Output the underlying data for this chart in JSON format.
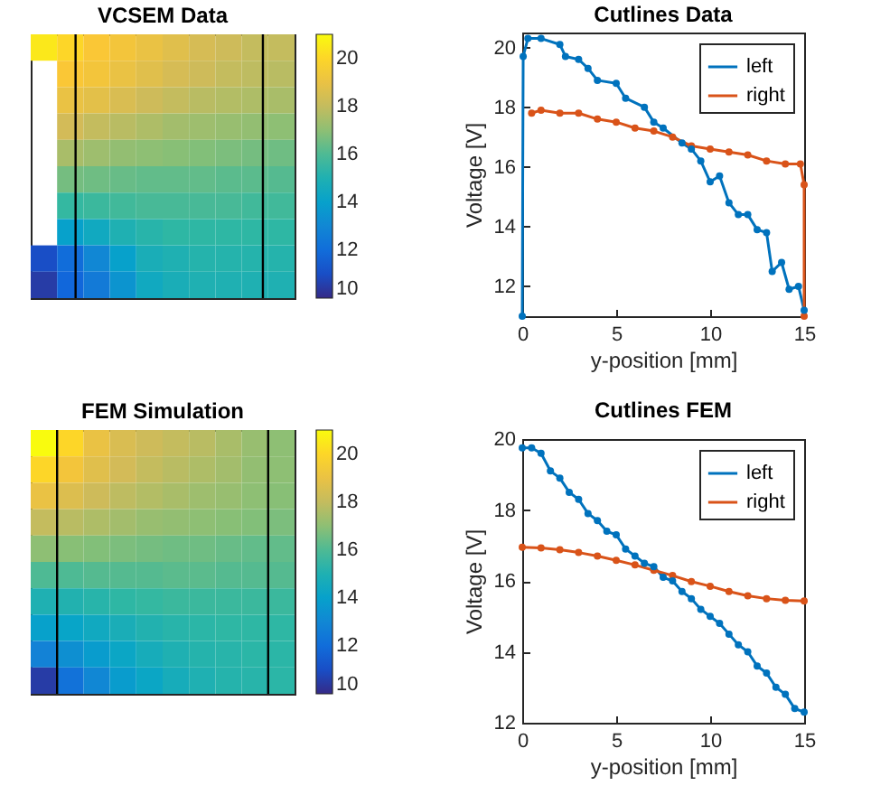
{
  "chart_data": [
    {
      "type": "heatmap",
      "title": "VCSEM Data",
      "categories": [
        null,
        null,
        null,
        null,
        null,
        null,
        null,
        null,
        null,
        null
      ],
      "y_categories": [
        null,
        null,
        null,
        null,
        null,
        null,
        null,
        null,
        null,
        null
      ],
      "clim": [
        10,
        21
      ],
      "cticks": [
        10,
        12,
        14,
        16,
        18,
        20
      ],
      "cells": [
        [
          20.5,
          20,
          19.5,
          19.3,
          19,
          18.7,
          18.4,
          18.2,
          18,
          18
        ],
        [
          null,
          19.5,
          19.3,
          19,
          18.7,
          18.4,
          18.2,
          18,
          17.9,
          17.8
        ],
        [
          null,
          19,
          18.8,
          18.5,
          18.2,
          18,
          17.8,
          17.7,
          17.6,
          17.5
        ],
        [
          null,
          18.3,
          18,
          17.8,
          17.6,
          17.4,
          17.3,
          17.2,
          17.1,
          17
        ],
        [
          null,
          17.5,
          17.3,
          17.1,
          17,
          16.9,
          16.8,
          16.7,
          16.6,
          16.5
        ],
        [
          null,
          16.6,
          16.5,
          16.4,
          16.3,
          16.3,
          16.3,
          16.2,
          16.2,
          16.1
        ],
        [
          null,
          15.6,
          15.7,
          15.8,
          15.9,
          15.9,
          15.9,
          15.9,
          15.8,
          15.8
        ],
        [
          null,
          14,
          14.5,
          15,
          15.3,
          15.5,
          15.5,
          15.5,
          15.5,
          15.5
        ],
        [
          11,
          12,
          13,
          14,
          14.8,
          15,
          15.2,
          15.2,
          15.2,
          15.2
        ],
        [
          10.5,
          11.8,
          12.5,
          13.5,
          14.5,
          14.8,
          15,
          15,
          15,
          15
        ]
      ]
    },
    {
      "type": "line",
      "title": "Cutlines Data",
      "xlabel": "y-position [mm]",
      "ylabel": "Voltage [V]",
      "xlim": [
        0,
        15
      ],
      "ylim": [
        11,
        20.5
      ],
      "xticks": [
        0,
        5,
        10,
        15
      ],
      "yticks": [
        12,
        14,
        16,
        18,
        20
      ],
      "legend": "top right",
      "marker": "circle",
      "line_style": "solid",
      "series": [
        {
          "name": "left",
          "color": "#0072bd",
          "x": [
            0,
            0.05,
            0.3,
            1,
            2,
            2.3,
            3,
            3.5,
            4,
            5,
            5.5,
            6.5,
            7,
            7.5,
            8.5,
            9,
            9.5,
            10,
            10.5,
            11,
            11.5,
            12,
            12.5,
            13,
            13.3,
            13.8,
            14.2,
            14.7,
            15
          ],
          "values": [
            11,
            19.7,
            20.3,
            20.3,
            20.1,
            19.7,
            19.6,
            19.3,
            18.9,
            18.8,
            18.3,
            18,
            17.5,
            17.3,
            16.8,
            16.6,
            16.2,
            15.5,
            15.7,
            14.8,
            14.4,
            14.4,
            13.9,
            13.8,
            12.5,
            12.8,
            11.9,
            12,
            11.2
          ]
        },
        {
          "name": "right",
          "color": "#d95319",
          "x": [
            0.5,
            1,
            2,
            3,
            4,
            5,
            6,
            7,
            8,
            9,
            10,
            11,
            12,
            13,
            14,
            14.8,
            15,
            15
          ],
          "values": [
            17.8,
            17.9,
            17.8,
            17.8,
            17.6,
            17.5,
            17.3,
            17.2,
            17,
            16.7,
            16.6,
            16.5,
            16.4,
            16.2,
            16.1,
            16.1,
            15.4,
            11
          ]
        }
      ]
    },
    {
      "type": "heatmap",
      "title": "FEM Simulation",
      "categories": [
        null,
        null,
        null,
        null,
        null,
        null,
        null,
        null,
        null,
        null
      ],
      "y_categories": [
        null,
        null,
        null,
        null,
        null,
        null,
        null,
        null,
        null,
        null
      ],
      "clim": [
        10,
        21
      ],
      "cticks": [
        10,
        12,
        14,
        16,
        18,
        20
      ],
      "cells": [
        [
          21,
          20,
          19,
          18.5,
          18.2,
          18,
          17.8,
          17.5,
          17.2,
          17
        ],
        [
          20,
          19.3,
          18.7,
          18.3,
          18,
          17.8,
          17.6,
          17.4,
          17.1,
          17
        ],
        [
          19,
          18.6,
          18.2,
          17.9,
          17.7,
          17.5,
          17.3,
          17.2,
          17,
          16.9
        ],
        [
          18,
          17.8,
          17.6,
          17.4,
          17.2,
          17.1,
          17,
          16.9,
          16.8,
          16.7
        ],
        [
          17,
          16.9,
          16.8,
          16.7,
          16.6,
          16.5,
          16.5,
          16.4,
          16.3,
          16.3
        ],
        [
          16,
          16,
          16.1,
          16.1,
          16.1,
          16.2,
          16.2,
          16.1,
          16.1,
          16.1
        ],
        [
          15,
          15.1,
          15.3,
          15.5,
          15.6,
          15.7,
          15.7,
          15.7,
          15.7,
          15.7
        ],
        [
          14,
          14.2,
          14.5,
          14.8,
          15.1,
          15.3,
          15.4,
          15.5,
          15.5,
          15.5
        ],
        [
          12.8,
          13.3,
          13.8,
          14.3,
          14.7,
          15,
          15.2,
          15.3,
          15.4,
          15.4
        ],
        [
          10.5,
          12.2,
          13,
          13.8,
          14.3,
          14.7,
          15,
          15.2,
          15.3,
          15.4
        ]
      ]
    },
    {
      "type": "line",
      "title": "Cutlines FEM",
      "xlabel": "y-position [mm]",
      "ylabel": "Voltage [V]",
      "xlim": [
        0,
        15
      ],
      "ylim": [
        12,
        20
      ],
      "xticks": [
        0,
        5,
        10,
        15
      ],
      "yticks": [
        12,
        14,
        16,
        18,
        20
      ],
      "legend": "top right",
      "marker": "circle",
      "line_style": "solid",
      "series": [
        {
          "name": "left",
          "color": "#0072bd",
          "x": [
            0,
            0.5,
            1,
            1.5,
            2,
            2.5,
            3,
            3.5,
            4,
            4.5,
            5,
            5.5,
            6,
            6.5,
            7,
            7.5,
            8,
            8.5,
            9,
            9.5,
            10,
            10.5,
            11,
            11.5,
            12,
            12.5,
            13,
            13.5,
            14,
            14.5,
            15
          ],
          "values": [
            19.75,
            19.75,
            19.6,
            19.1,
            18.9,
            18.5,
            18.3,
            17.9,
            17.7,
            17.4,
            17.3,
            16.9,
            16.7,
            16.5,
            16.4,
            16.1,
            16,
            15.7,
            15.5,
            15.2,
            15,
            14.8,
            14.5,
            14.2,
            14,
            13.6,
            13.4,
            13,
            12.8,
            12.4,
            12.3
          ]
        },
        {
          "name": "right",
          "color": "#d95319",
          "x": [
            0,
            1,
            2,
            3,
            4,
            5,
            6,
            7,
            8,
            9,
            10,
            11,
            12,
            13,
            14,
            15
          ],
          "values": [
            16.95,
            16.93,
            16.88,
            16.8,
            16.7,
            16.58,
            16.45,
            16.3,
            16.15,
            15.98,
            15.85,
            15.7,
            15.58,
            15.5,
            15.45,
            15.43
          ]
        }
      ]
    }
  ]
}
